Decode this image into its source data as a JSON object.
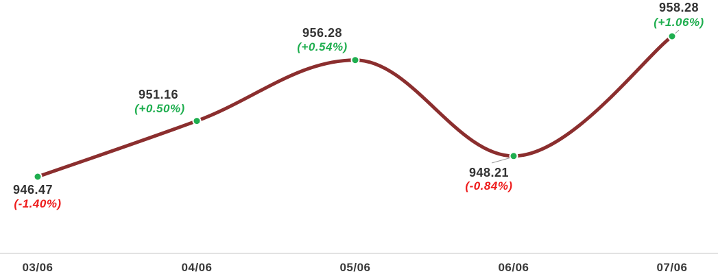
{
  "chart_data": {
    "type": "line",
    "categories": [
      "03/06",
      "04/06",
      "05/06",
      "06/06",
      "07/06"
    ],
    "values": [
      946.47,
      951.16,
      956.28,
      948.21,
      958.28
    ],
    "changes": [
      "(-1.40%)",
      "(+0.50%)",
      "(+0.54%)",
      "(-0.84%)",
      "(+1.06%)"
    ],
    "value_labels": [
      "946.47",
      "951.16",
      "956.28",
      "948.21",
      "958.28"
    ],
    "line_color": "#8b2e2e",
    "point_color": "#1fae4f",
    "positive_color": "#1fae4f",
    "negative_color": "#ee1c1c",
    "grid": false,
    "legend": "none"
  }
}
